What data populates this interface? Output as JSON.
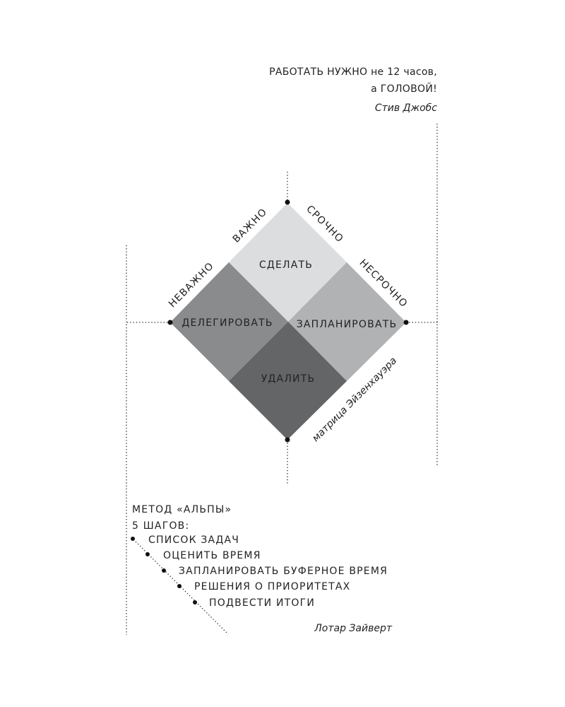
{
  "quote": {
    "line1": "РАБОТАТЬ НУЖНО не 12 часов,",
    "line2": "а ГОЛОВОЙ!",
    "author": "Стив Джобс"
  },
  "matrix": {
    "caption": "матрица Эйзенхауэра",
    "axis_labels": {
      "important": "ВАЖНО",
      "unimportant": "НЕВАЖНО",
      "urgent": "СРОЧНО",
      "not_urgent": "НЕСРОЧНО"
    },
    "quadrants": [
      {
        "label": "СДЕЛАТЬ",
        "color": "#dcdddf",
        "text_color": "#222222"
      },
      {
        "label": "ДЕЛЕГИРОВАТЬ",
        "color": "#8a8b8d",
        "text_color": "#ffffff"
      },
      {
        "label": "ЗАПЛАНИРОВАТЬ",
        "color": "#b1b2b4",
        "text_color": "#222222"
      },
      {
        "label": "УДАЛИТЬ",
        "color": "#646567",
        "text_color": "#ffffff"
      }
    ]
  },
  "alps": {
    "title1": "МЕТОД «АЛЬПЫ»",
    "title2": "5 ШАГОВ:",
    "steps": [
      "СПИСОК ЗАДАЧ",
      "ОЦЕНИТЬ ВРЕМЯ",
      "ЗАПЛАНИРОВАТЬ БУФЕРНОЕ ВРЕМЯ",
      "РЕШЕНИЯ О ПРИОРИТЕТАХ",
      "ПОДВЕСТИ ИТОГИ"
    ],
    "author": "Лотар Зайверт"
  }
}
